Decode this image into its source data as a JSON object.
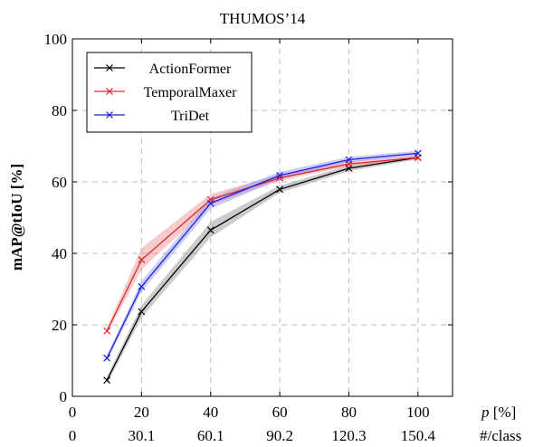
{
  "chart_data": {
    "type": "line",
    "title": "THUMOS’14",
    "ylabel": "mAP@tIoU [%]",
    "xlabel_primary": "p [%]",
    "xlabel_secondary": "#/class",
    "xlim": [
      0,
      110
    ],
    "ylim": [
      0,
      100
    ],
    "x_ticks": [
      0,
      20,
      40,
      60,
      80,
      100
    ],
    "x_tick_labels": [
      "0",
      "20",
      "40",
      "60",
      "80",
      "100"
    ],
    "x_secondary_tick_labels": [
      "0",
      "30.1",
      "60.1",
      "90.2",
      "120.3",
      "150.4"
    ],
    "y_ticks": [
      0,
      20,
      40,
      60,
      80,
      100
    ],
    "y_tick_labels": [
      "0",
      "20",
      "40",
      "60",
      "80",
      "100"
    ],
    "grid": true,
    "legend_position": "top-left",
    "x": [
      10,
      20,
      40,
      60,
      80,
      100
    ],
    "series": [
      {
        "name": "ActionFormer",
        "color": "#000000",
        "band_color": "#8c8c8c",
        "values": [
          4.5,
          23.7,
          46.5,
          57.9,
          63.8,
          66.8
        ],
        "lower": [
          3.5,
          22.0,
          44.5,
          57.0,
          63.0,
          66.3
        ],
        "upper": [
          5.5,
          25.5,
          48.8,
          59.0,
          64.6,
          67.3
        ]
      },
      {
        "name": "TemporalMaxer",
        "color": "#e3262b",
        "band_color": "#e88b8b",
        "values": [
          18.3,
          38.2,
          55.0,
          61.1,
          65.0,
          66.8
        ],
        "lower": [
          17.5,
          35.5,
          53.5,
          60.3,
          64.4,
          66.4
        ],
        "upper": [
          19.2,
          41.5,
          56.6,
          62.1,
          65.7,
          67.4
        ]
      },
      {
        "name": "TriDet",
        "color": "#1f1fe0",
        "band_color": "#8b8ff0",
        "values": [
          10.7,
          30.7,
          54.0,
          61.8,
          66.2,
          68.0
        ],
        "lower": [
          9.8,
          29.3,
          52.5,
          60.8,
          65.5,
          67.3
        ],
        "upper": [
          11.5,
          32.2,
          55.5,
          62.8,
          67.0,
          68.7
        ]
      }
    ]
  }
}
